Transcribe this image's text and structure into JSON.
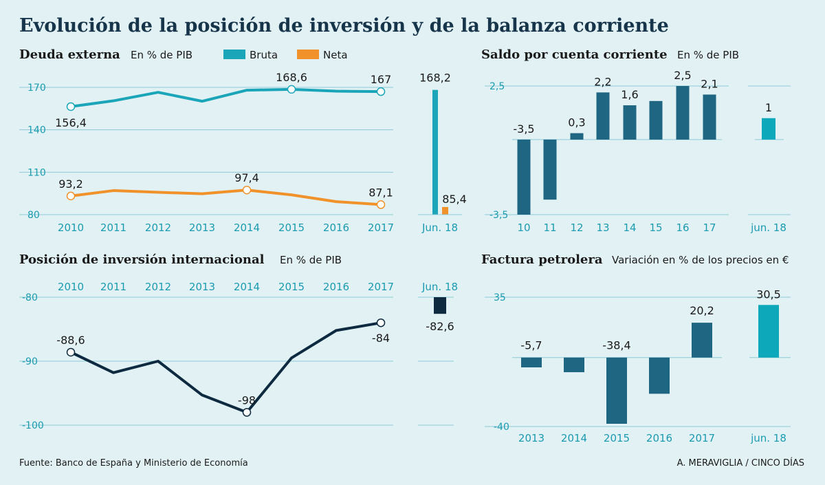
{
  "title": "Evolución de la posición de inversión y de la balanza corriente",
  "footer": {
    "source": "Fuente: Banco de España y Ministerio de Economía",
    "credit": "A. MERAVIGLIA / CINCO DÍAS"
  },
  "colors": {
    "bruta": "#1aa5b8",
    "neta": "#f0912a",
    "dark_bar": "#1e6681",
    "light_bar": "#0ea8bb",
    "navy": "#0d2a40",
    "grid": "#8cc9d6",
    "tick": "#1a9bb0"
  },
  "chart_data": [
    {
      "id": "deuda",
      "type": "line",
      "title": "Deuda externa",
      "unit": "En % de PIB",
      "x": [
        "2010",
        "2011",
        "2012",
        "2013",
        "2014",
        "2015",
        "2016",
        "2017"
      ],
      "yticks": [
        80,
        110,
        140,
        170
      ],
      "ylabels": [
        "80",
        "110",
        "140",
        "170"
      ],
      "ylim": [
        80,
        178
      ],
      "series": [
        {
          "name": "Bruta",
          "values": [
            156.4,
            160.5,
            166.5,
            160.2,
            168.0,
            168.6,
            167.3,
            167.0
          ],
          "labels": {
            "0": "156,4",
            "5": "168,6",
            "7": "167"
          }
        },
        {
          "name": "Neta",
          "values": [
            93.2,
            97.0,
            95.8,
            94.8,
            97.4,
            94.0,
            89.2,
            87.1
          ],
          "labels": {
            "0": "93,2",
            "4": "97,4",
            "7": "87,1"
          }
        }
      ],
      "extra": {
        "label": "Jun. 18",
        "values": [
          168.2,
          85.4
        ],
        "value_labels": [
          "168,2",
          "85,4"
        ]
      }
    },
    {
      "id": "saldo",
      "type": "bar",
      "title": "Saldo por cuenta corriente",
      "unit": "En % de PIB",
      "categories": [
        "10",
        "11",
        "12",
        "13",
        "14",
        "15",
        "16",
        "17"
      ],
      "values": [
        -3.5,
        -2.8,
        0.3,
        2.2,
        1.6,
        1.8,
        2.5,
        2.1
      ],
      "value_labels": [
        "-3,5",
        "",
        "0,3",
        "2,2",
        "1,6",
        "",
        "2,5",
        "2,1"
      ],
      "yticks": [
        -3.5,
        2.5
      ],
      "ylabels": [
        "-3,5",
        "2,5"
      ],
      "ylim": [
        -3.5,
        2.5
      ],
      "extra": {
        "label": "jun. 18",
        "value": 1.0,
        "value_label": "1"
      }
    },
    {
      "id": "posicion",
      "type": "line",
      "title": "Posición de inversión internacional",
      "unit": "En % de PIB",
      "x": [
        "2010",
        "2011",
        "2012",
        "2013",
        "2014",
        "2015",
        "2016",
        "2017"
      ],
      "yticks": [
        -80,
        -90,
        -100
      ],
      "ylabels": [
        "-80",
        "-90",
        "-100"
      ],
      "ylim": [
        -100,
        -80
      ],
      "series": [
        {
          "name": "Posición",
          "values": [
            -88.6,
            -91.8,
            -90.0,
            -95.3,
            -98.0,
            -89.5,
            -85.2,
            -84.0
          ],
          "labels": {
            "0": "-88,6",
            "4": "-98",
            "7": "-84"
          }
        }
      ],
      "extra": {
        "label": "Jun. 18",
        "value": -82.6,
        "value_label": "-82,6"
      }
    },
    {
      "id": "factura",
      "type": "bar",
      "title": "Factura petrolera",
      "unit": "Variación en % de los precios en €",
      "categories": [
        "2013",
        "2014",
        "2015",
        "2016",
        "2017"
      ],
      "values": [
        -5.7,
        -8.5,
        -38.4,
        -21.0,
        20.2
      ],
      "value_labels": [
        "-5,7",
        "",
        "-38,4",
        "",
        "20,2"
      ],
      "yticks": [
        35,
        -40
      ],
      "ylabels": [
        "35",
        "-40"
      ],
      "ylim": [
        -40,
        35
      ],
      "extra": {
        "label": "jun. 18",
        "value": 30.5,
        "value_label": "30,5"
      }
    }
  ]
}
